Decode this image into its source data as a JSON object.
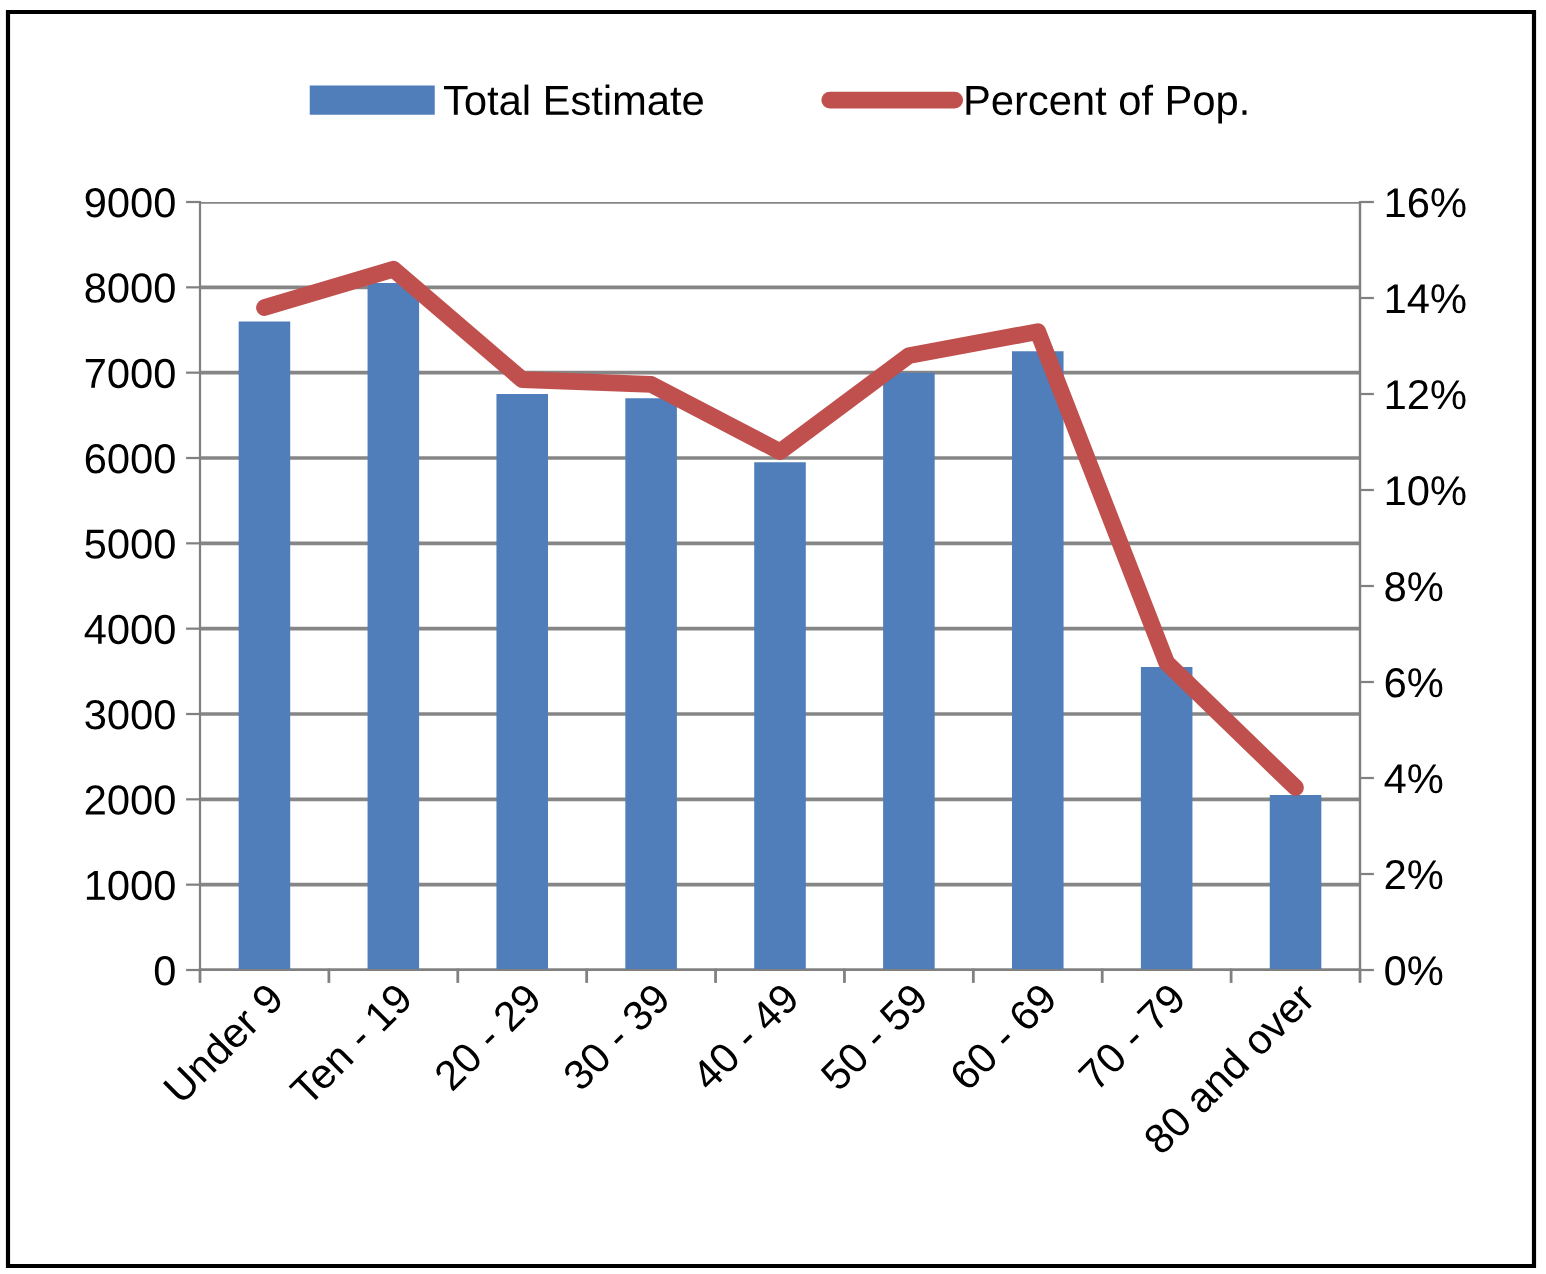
{
  "chart_data": {
    "type": "bar",
    "categories": [
      "Under 9",
      "Ten - 19",
      "20 - 29",
      "30 - 39",
      "40 - 49",
      "50 - 59",
      "60 - 69",
      "70 - 79",
      "80 and over"
    ],
    "series": [
      {
        "name": "Total Estimate",
        "color": "#4f7ebb",
        "values": [
          7600,
          8050,
          6750,
          6700,
          5950,
          7000,
          7250,
          3550,
          2050
        ]
      },
      {
        "name": "Percent of Pop.",
        "type": "line",
        "axis": "y2",
        "color": "#c0504d",
        "values": [
          13.8,
          14.6,
          12.3,
          12.2,
          10.8,
          12.8,
          13.3,
          6.4,
          3.8
        ]
      }
    ],
    "ylim": [
      0,
      9000
    ],
    "yticks": [
      0,
      1000,
      2000,
      3000,
      4000,
      5000,
      6000,
      7000,
      8000,
      9000
    ],
    "y2lim": [
      0,
      16
    ],
    "y2ticks": [
      {
        "value": 0,
        "label": "0%"
      },
      {
        "value": 2,
        "label": "2%"
      },
      {
        "value": 4,
        "label": "4%"
      },
      {
        "value": 6,
        "label": "6%"
      },
      {
        "value": 8,
        "label": "8%"
      },
      {
        "value": 10,
        "label": "10%"
      },
      {
        "value": 12,
        "label": "12%"
      },
      {
        "value": 14,
        "label": "14%"
      },
      {
        "value": 16,
        "label": "16%"
      }
    ],
    "grid": "y",
    "legend": "top",
    "marker": "none",
    "line_style": "solid"
  }
}
